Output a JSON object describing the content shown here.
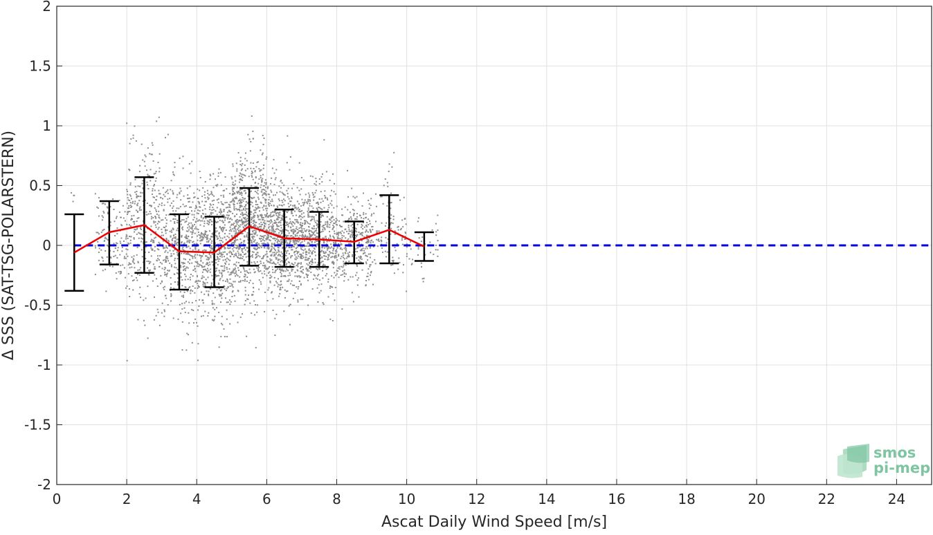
{
  "chart_data": {
    "type": "scatter",
    "xlabel": "Ascat Daily Wind Speed [m/s]",
    "ylabel": "Δ SSS (SAT-TSG-POLARSTERN)",
    "xlim": [
      0,
      25
    ],
    "ylim": [
      -2,
      2
    ],
    "xticks": [
      0,
      2,
      4,
      6,
      8,
      10,
      12,
      14,
      16,
      18,
      20,
      22,
      24
    ],
    "yticks": [
      2,
      1.5,
      1,
      0.5,
      0,
      -0.5,
      -1,
      -1.5,
      -2
    ],
    "xtick_labels": [
      "0",
      "2",
      "4",
      "6",
      "8",
      "10",
      "12",
      "14",
      "16",
      "18",
      "20",
      "22",
      "24"
    ],
    "ytick_labels": [
      "2",
      "1.5",
      "1",
      "0.5",
      "0",
      "-0.5",
      "-1",
      "-1.5",
      "-2"
    ],
    "grid": true,
    "reference_line": {
      "y": 0,
      "style": "dashed",
      "color": "#0000dd"
    },
    "scatter_color": "#8c8c8c",
    "scatter_clusters": [
      {
        "x_range": [
          0.4,
          0.5
        ],
        "y_mean": 0.45,
        "y_sd": 0.08,
        "n": 4
      },
      {
        "x_range": [
          1.1,
          2.0
        ],
        "y_mean": 0.05,
        "y_sd": 0.18,
        "n": 120
      },
      {
        "x_range": [
          2.0,
          3.0
        ],
        "y_mean": 0.15,
        "y_sd": 0.32,
        "n": 350
      },
      {
        "x_range": [
          3.0,
          4.0
        ],
        "y_mean": -0.02,
        "y_sd": 0.3,
        "n": 450
      },
      {
        "x_range": [
          4.0,
          5.0
        ],
        "y_mean": -0.03,
        "y_sd": 0.28,
        "n": 600
      },
      {
        "x_range": [
          5.0,
          6.0
        ],
        "y_mean": 0.14,
        "y_sd": 0.3,
        "n": 800
      },
      {
        "x_range": [
          6.0,
          7.0
        ],
        "y_mean": 0.06,
        "y_sd": 0.24,
        "n": 700
      },
      {
        "x_range": [
          7.0,
          8.0
        ],
        "y_mean": 0.05,
        "y_sd": 0.22,
        "n": 550
      },
      {
        "x_range": [
          8.0,
          9.0
        ],
        "y_mean": 0.03,
        "y_sd": 0.18,
        "n": 350
      },
      {
        "x_range": [
          9.0,
          10.0
        ],
        "y_mean": 0.12,
        "y_sd": 0.22,
        "n": 120
      },
      {
        "x_range": [
          10.0,
          10.9
        ],
        "y_mean": -0.02,
        "y_sd": 0.12,
        "n": 40
      }
    ],
    "series": [
      {
        "type": "errorbar_line",
        "color": "#ee0000",
        "errorbar_color": "#000000",
        "x": [
          0.5,
          1.5,
          2.5,
          3.5,
          4.5,
          5.5,
          6.5,
          7.5,
          8.5,
          9.5,
          10.5
        ],
        "y": [
          -0.06,
          0.11,
          0.17,
          -0.05,
          -0.06,
          0.16,
          0.06,
          0.05,
          0.03,
          0.13,
          -0.01
        ],
        "y_low": [
          -0.38,
          -0.16,
          -0.23,
          -0.37,
          -0.35,
          -0.17,
          -0.18,
          -0.18,
          -0.15,
          -0.15,
          -0.13
        ],
        "y_high": [
          0.26,
          0.37,
          0.57,
          0.26,
          0.24,
          0.48,
          0.3,
          0.28,
          0.2,
          0.42,
          0.11
        ]
      }
    ]
  },
  "logo": {
    "line1": "smos",
    "line2": "pi-mep",
    "color": "#7fc5a2"
  }
}
